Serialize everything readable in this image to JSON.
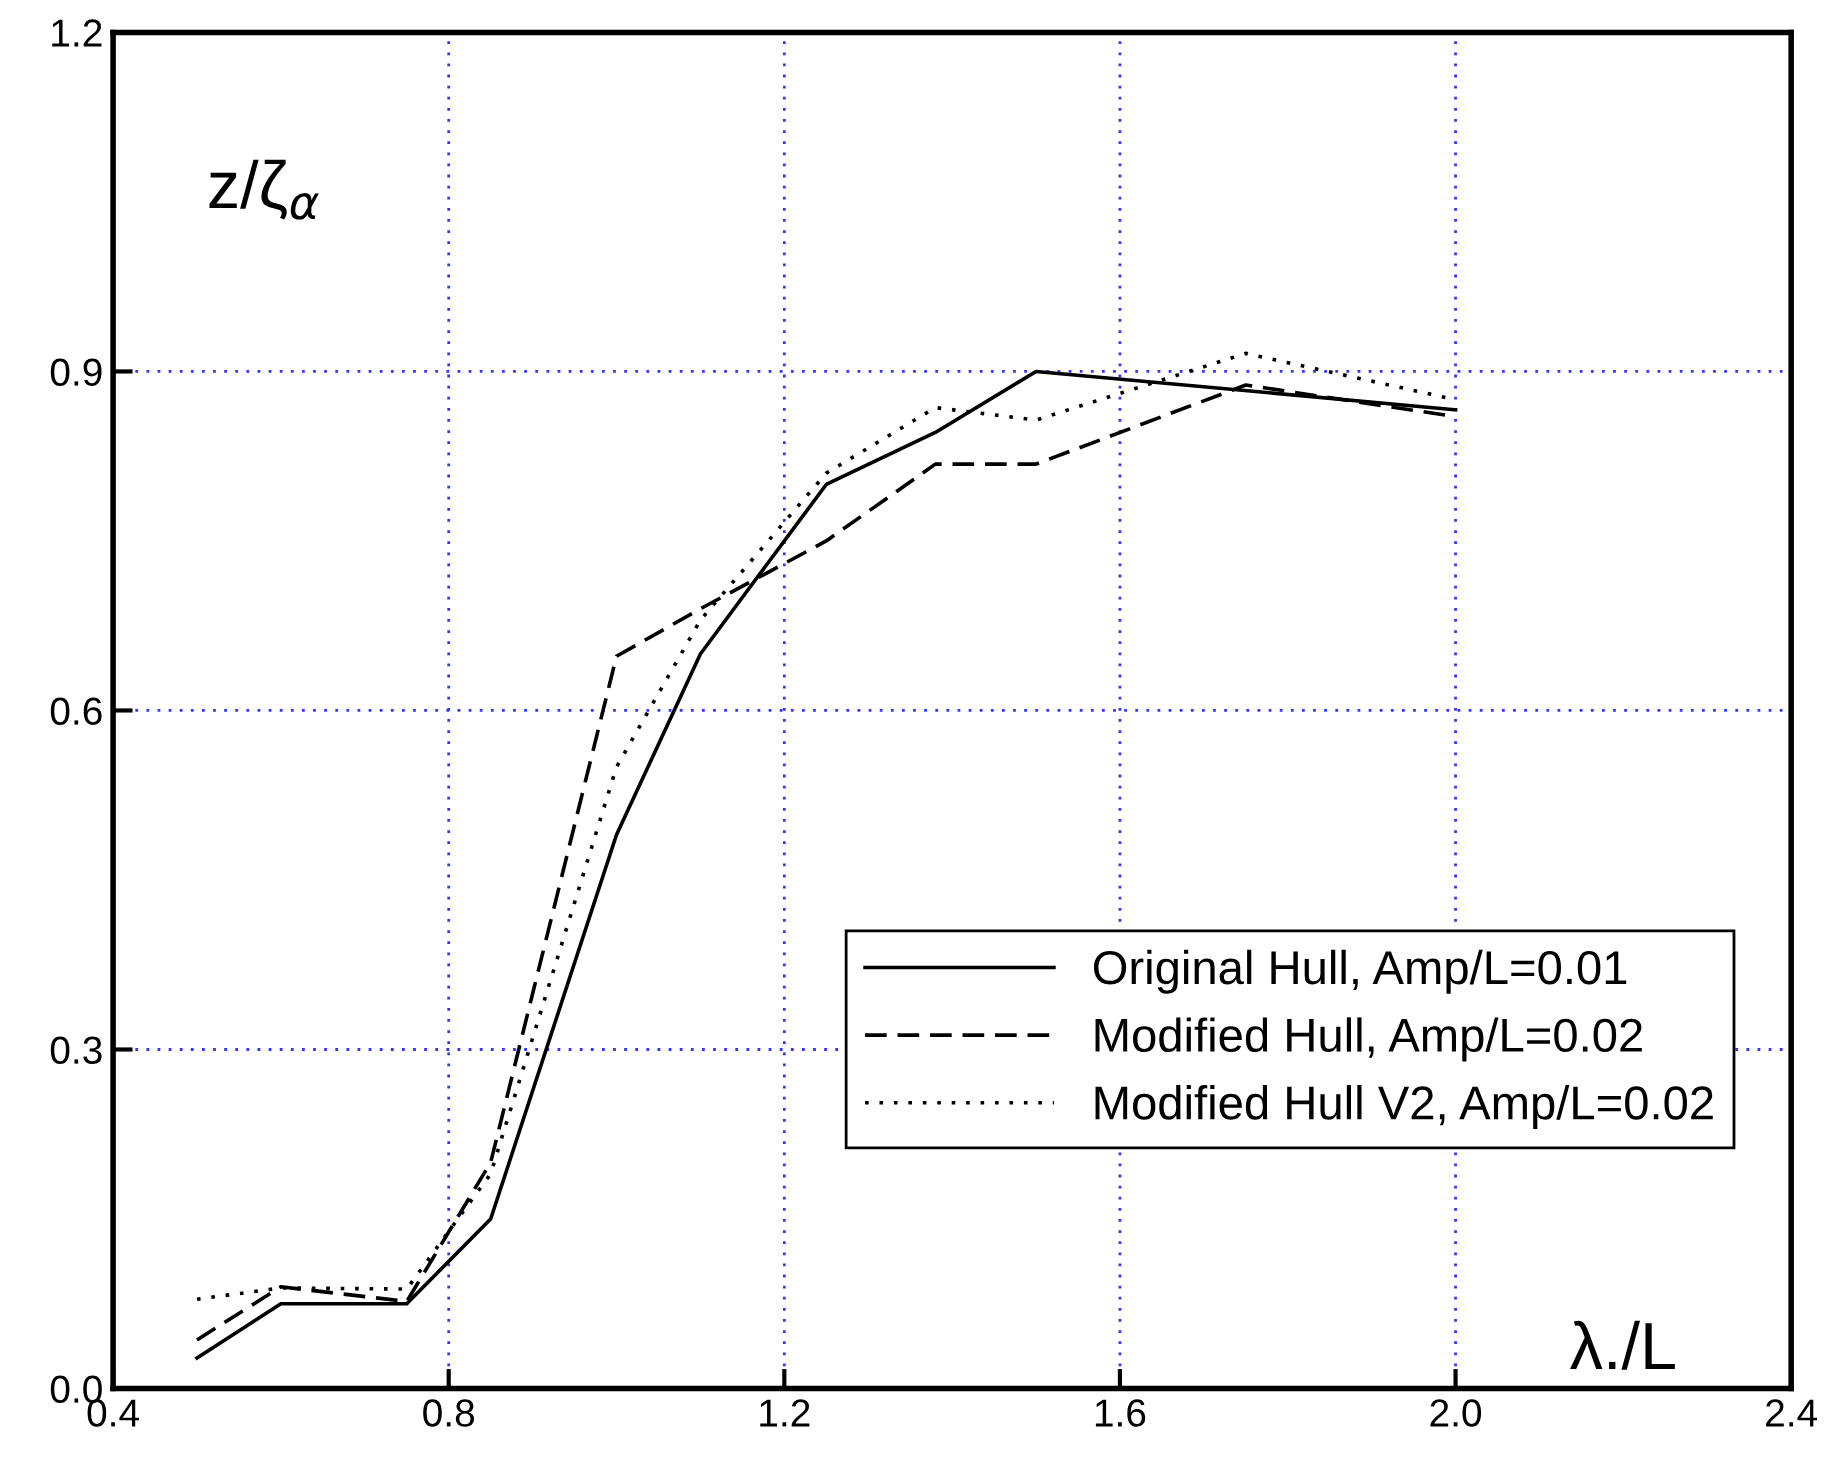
{
  "chart_data": {
    "type": "line",
    "xlabel": "λ./L",
    "ylabel": "z/ζ$_{α}$",
    "xlim": [
      0.4,
      2.4
    ],
    "xticks": [
      0.4,
      0.8,
      1.2,
      1.6,
      {
        "value": 2.0,
        "label": "2.0"
      },
      2.4
    ],
    "ylim": [
      0.0,
      1.2
    ],
    "yticks": [
      {
        "value": 0.0,
        "label": "0.0"
      },
      0.3,
      0.6,
      0.9,
      1.2
    ],
    "grid": true,
    "legend": "bottom right",
    "series": [
      {
        "name": "Original Hull, Amp/L=0.01",
        "color": "#000000",
        "line_style": "solid",
        "x": [
          0.5,
          0.6,
          0.75,
          0.85,
          1.0,
          1.1,
          1.25,
          1.38,
          1.5,
          2.0
        ],
        "values": [
          0.027,
          0.075,
          0.075,
          0.15,
          0.49,
          0.65,
          0.8,
          0.846,
          0.9,
          0.866
        ]
      },
      {
        "name": "Modified Hull, Amp/L=0.02",
        "color": "#000000",
        "line_style": "dashed",
        "x": [
          0.5,
          0.6,
          0.75,
          0.85,
          1.0,
          1.1,
          1.25,
          1.38,
          1.5,
          1.75,
          2.0
        ],
        "values": [
          0.043,
          0.09,
          0.077,
          0.2,
          0.648,
          0.69,
          0.75,
          0.818,
          0.818,
          0.888,
          0.86
        ]
      },
      {
        "name": "Modified Hull V2, Amp/L=0.02",
        "color": "#000000",
        "line_style": "dotted",
        "x": [
          0.5,
          0.6,
          0.75,
          0.85,
          1.0,
          1.1,
          1.25,
          1.38,
          1.5,
          1.75,
          2.0
        ],
        "values": [
          0.079,
          0.089,
          0.088,
          0.19,
          0.55,
          0.68,
          0.81,
          0.868,
          0.857,
          0.916,
          0.875
        ]
      }
    ]
  }
}
